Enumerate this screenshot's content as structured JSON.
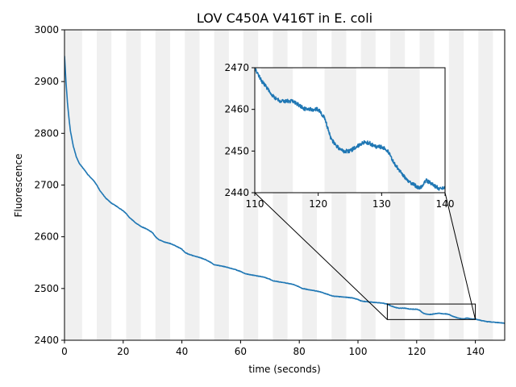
{
  "chart_data": {
    "type": "line",
    "title": "LOV C450A V416T in E. coli",
    "xlabel": "time (seconds)",
    "ylabel": "Fluorescence",
    "xlim": [
      0,
      150
    ],
    "ylim": [
      2400,
      3000
    ],
    "xticks": [
      0,
      20,
      40,
      60,
      80,
      100,
      120,
      140
    ],
    "yticks": [
      2400,
      2500,
      2600,
      2700,
      2800,
      2900,
      3000
    ],
    "grid": false,
    "line_color": "#1f77b4",
    "band_color": "#f0f0f0",
    "light_bands": [
      [
        0,
        6
      ],
      [
        11,
        16
      ],
      [
        21,
        26
      ],
      [
        31,
        36
      ],
      [
        41,
        46
      ],
      [
        51,
        56
      ],
      [
        61,
        66
      ],
      [
        71,
        76
      ],
      [
        81,
        86
      ],
      [
        91,
        96
      ],
      [
        101,
        106
      ],
      [
        111,
        116
      ],
      [
        121,
        126
      ],
      [
        131,
        136
      ],
      [
        141,
        146
      ]
    ],
    "series": [
      {
        "x": [
          0,
          0.5,
          1,
          1.5,
          2,
          3,
          4,
          5,
          6,
          8,
          10,
          11,
          12,
          14,
          16,
          18,
          20,
          21,
          22,
          24,
          26,
          28,
          30,
          31,
          32,
          34,
          36,
          38,
          40,
          41,
          42,
          44,
          46,
          48,
          50,
          51,
          52,
          54,
          56,
          58,
          60,
          61,
          62,
          64,
          66,
          68,
          70,
          71,
          72,
          74,
          76,
          78,
          80,
          81,
          82,
          84,
          86,
          88,
          90,
          91,
          92,
          94,
          96,
          98,
          100,
          101,
          102,
          104,
          106,
          108,
          110,
          111,
          112,
          113,
          114,
          115,
          116,
          117,
          118,
          119,
          120,
          121,
          122,
          123,
          124,
          125,
          126,
          127,
          128,
          129,
          130,
          131,
          132,
          133,
          134,
          135,
          136,
          137,
          138,
          139,
          140,
          142,
          144,
          146,
          148,
          150
        ],
        "y": [
          2950,
          2900,
          2860,
          2830,
          2805,
          2775,
          2755,
          2742,
          2735,
          2720,
          2708,
          2700,
          2690,
          2675,
          2665,
          2658,
          2650,
          2645,
          2638,
          2628,
          2620,
          2615,
          2608,
          2600,
          2595,
          2590,
          2587,
          2582,
          2576,
          2570,
          2567,
          2563,
          2560,
          2556,
          2550,
          2546,
          2545,
          2543,
          2540,
          2537,
          2533,
          2530,
          2528,
          2526,
          2524,
          2522,
          2518,
          2515,
          2514,
          2512,
          2510,
          2508,
          2503,
          2500,
          2499,
          2497,
          2495,
          2492,
          2488,
          2486,
          2485,
          2484,
          2483,
          2482,
          2479,
          2476,
          2475,
          2474,
          2473,
          2472,
          2470,
          2467,
          2465,
          2463,
          2462,
          2462,
          2462,
          2461,
          2460,
          2460,
          2460,
          2458,
          2453,
          2451,
          2450,
          2450,
          2451,
          2452,
          2452,
          2451,
          2451,
          2450,
          2447,
          2445,
          2443,
          2442,
          2441,
          2443,
          2442,
          2441,
          2441,
          2438,
          2436,
          2435,
          2434,
          2433
        ]
      }
    ],
    "inset": {
      "xlim": [
        110,
        140
      ],
      "ylim": [
        2440,
        2470
      ],
      "xticks": [
        110,
        120,
        130,
        140
      ],
      "yticks": [
        2440,
        2450,
        2460,
        2470
      ]
    }
  }
}
